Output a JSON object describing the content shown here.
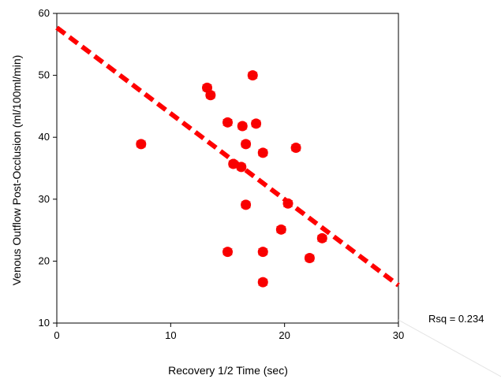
{
  "chart_data": {
    "type": "scatter",
    "title": "",
    "xlabel": "Recovery 1/2 Time (sec)",
    "ylabel": "Venous Outflow Post-Occlusion (ml/100ml/min)",
    "xlim": [
      0,
      30
    ],
    "ylim": [
      10,
      60
    ],
    "xticks": [
      0,
      10,
      20,
      30
    ],
    "yticks": [
      10,
      20,
      30,
      40,
      50,
      60
    ],
    "grid": false,
    "legend": "none",
    "colors": {
      "points": "#ff0000",
      "fit_line": "#ff0000",
      "axis": "#000000"
    },
    "points": [
      {
        "x": 7.4,
        "y": 38.9
      },
      {
        "x": 13.2,
        "y": 48.0
      },
      {
        "x": 13.5,
        "y": 46.8
      },
      {
        "x": 15.0,
        "y": 42.4
      },
      {
        "x": 15.0,
        "y": 21.5
      },
      {
        "x": 15.5,
        "y": 35.7
      },
      {
        "x": 16.2,
        "y": 35.2
      },
      {
        "x": 16.3,
        "y": 41.8
      },
      {
        "x": 16.6,
        "y": 38.9
      },
      {
        "x": 16.6,
        "y": 29.1
      },
      {
        "x": 17.2,
        "y": 50.0
      },
      {
        "x": 17.5,
        "y": 42.2
      },
      {
        "x": 18.1,
        "y": 37.5
      },
      {
        "x": 18.1,
        "y": 21.5
      },
      {
        "x": 18.1,
        "y": 16.6
      },
      {
        "x": 19.7,
        "y": 25.1
      },
      {
        "x": 20.3,
        "y": 29.3
      },
      {
        "x": 21.0,
        "y": 38.3
      },
      {
        "x": 22.2,
        "y": 20.5
      },
      {
        "x": 23.3,
        "y": 23.7
      }
    ],
    "fit_line": {
      "x": [
        0,
        30
      ],
      "y": [
        57.7,
        16.1
      ]
    },
    "annotation": {
      "text": "Rsq = 0.234"
    }
  }
}
